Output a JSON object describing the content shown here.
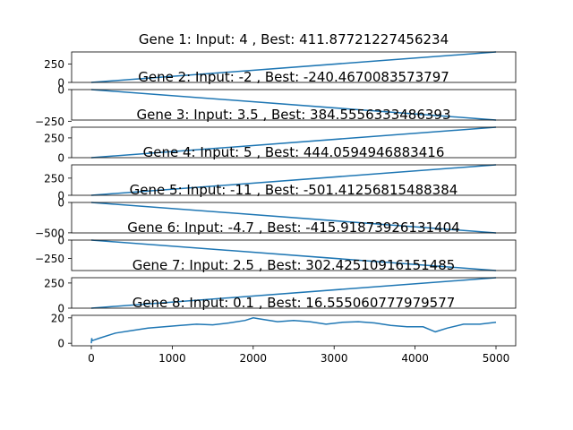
{
  "chart_data": [
    {
      "type": "line",
      "title": "Gene 1: Input: 4 , Best: 411.87721227456234",
      "xlim": [
        0,
        5000
      ],
      "ylim": [
        0,
        412
      ],
      "yticks": [
        0,
        250
      ],
      "yticklabels": [
        "0",
        "250"
      ],
      "series": [
        {
          "color": "#1f77b4",
          "x": [
            0,
            5000
          ],
          "y": [
            0,
            411.877
          ]
        }
      ]
    },
    {
      "type": "line",
      "title": "Gene 2: Input: -2 , Best: -240.4670083573797",
      "xlim": [
        0,
        5000
      ],
      "ylim": [
        -240.5,
        0
      ],
      "yticks": [
        -250,
        0
      ],
      "yticklabels": [
        "−250",
        "0"
      ],
      "series": [
        {
          "color": "#1f77b4",
          "x": [
            0,
            5000
          ],
          "y": [
            0,
            -240.467
          ]
        }
      ]
    },
    {
      "type": "line",
      "title": "Gene 3: Input: 3.5 , Best: 384.5556333486393",
      "xlim": [
        0,
        5000
      ],
      "ylim": [
        0,
        385
      ],
      "yticks": [
        0,
        250
      ],
      "yticklabels": [
        "0",
        "250"
      ],
      "series": [
        {
          "color": "#1f77b4",
          "x": [
            0,
            5000
          ],
          "y": [
            0,
            384.556
          ]
        }
      ]
    },
    {
      "type": "line",
      "title": "Gene 4: Input: 5 , Best: 444.0594946883416",
      "xlim": [
        0,
        5000
      ],
      "ylim": [
        0,
        444
      ],
      "yticks": [
        0,
        250
      ],
      "yticklabels": [
        "0",
        "250"
      ],
      "series": [
        {
          "color": "#1f77b4",
          "x": [
            0,
            5000
          ],
          "y": [
            0,
            444.059
          ]
        }
      ]
    },
    {
      "type": "line",
      "title": "Gene 5: Input: -11 , Best: -501.41256815488384",
      "xlim": [
        0,
        5000
      ],
      "ylim": [
        -501.5,
        0
      ],
      "yticks": [
        -500,
        0
      ],
      "yticklabels": [
        "−500",
        "0"
      ],
      "series": [
        {
          "color": "#1f77b4",
          "x": [
            0,
            5000
          ],
          "y": [
            0,
            -501.413
          ]
        }
      ]
    },
    {
      "type": "line",
      "title": "Gene 6: Input: -4.7 , Best: -415.91873926131404",
      "xlim": [
        0,
        5000
      ],
      "ylim": [
        -416,
        0
      ],
      "yticks": [
        -250,
        0
      ],
      "yticklabels": [
        "−250",
        "0"
      ],
      "series": [
        {
          "color": "#1f77b4",
          "x": [
            0,
            5000
          ],
          "y": [
            0,
            -415.919
          ]
        }
      ]
    },
    {
      "type": "line",
      "title": "Gene 7: Input: 2.5 , Best: 302.42510916151485",
      "xlim": [
        0,
        5000
      ],
      "ylim": [
        0,
        302.5
      ],
      "yticks": [
        0,
        250
      ],
      "yticklabels": [
        "0",
        "250"
      ],
      "series": [
        {
          "color": "#1f77b4",
          "x": [
            0,
            5000
          ],
          "y": [
            0,
            302.425
          ]
        }
      ]
    },
    {
      "type": "line",
      "title": "Gene 8: Input: 0.1 , Best: 16.555060777979577",
      "xlim": [
        0,
        5000
      ],
      "ylim": [
        -2,
        22
      ],
      "yticks": [
        0,
        20
      ],
      "yticklabels": [
        "0",
        "20"
      ],
      "xticks": [
        0,
        1000,
        2000,
        3000,
        4000,
        5000
      ],
      "xticklabels": [
        "0",
        "1000",
        "2000",
        "3000",
        "4000",
        "5000"
      ],
      "series": [
        {
          "color": "#1f77b4",
          "x": [
            0,
            5,
            10,
            100,
            300,
            500,
            700,
            900,
            1100,
            1300,
            1500,
            1700,
            1900,
            2000,
            2100,
            2300,
            2500,
            2700,
            2900,
            3100,
            3300,
            3500,
            3700,
            3900,
            4100,
            4250,
            4400,
            4600,
            4800,
            5000
          ],
          "y": [
            0,
            4,
            2,
            4,
            8,
            10,
            12,
            13,
            14,
            15,
            14.5,
            16,
            18,
            20,
            19,
            17,
            18,
            17,
            15,
            16.5,
            17,
            16,
            14,
            13,
            13,
            9,
            12,
            15,
            15,
            16.5
          ]
        }
      ]
    }
  ]
}
